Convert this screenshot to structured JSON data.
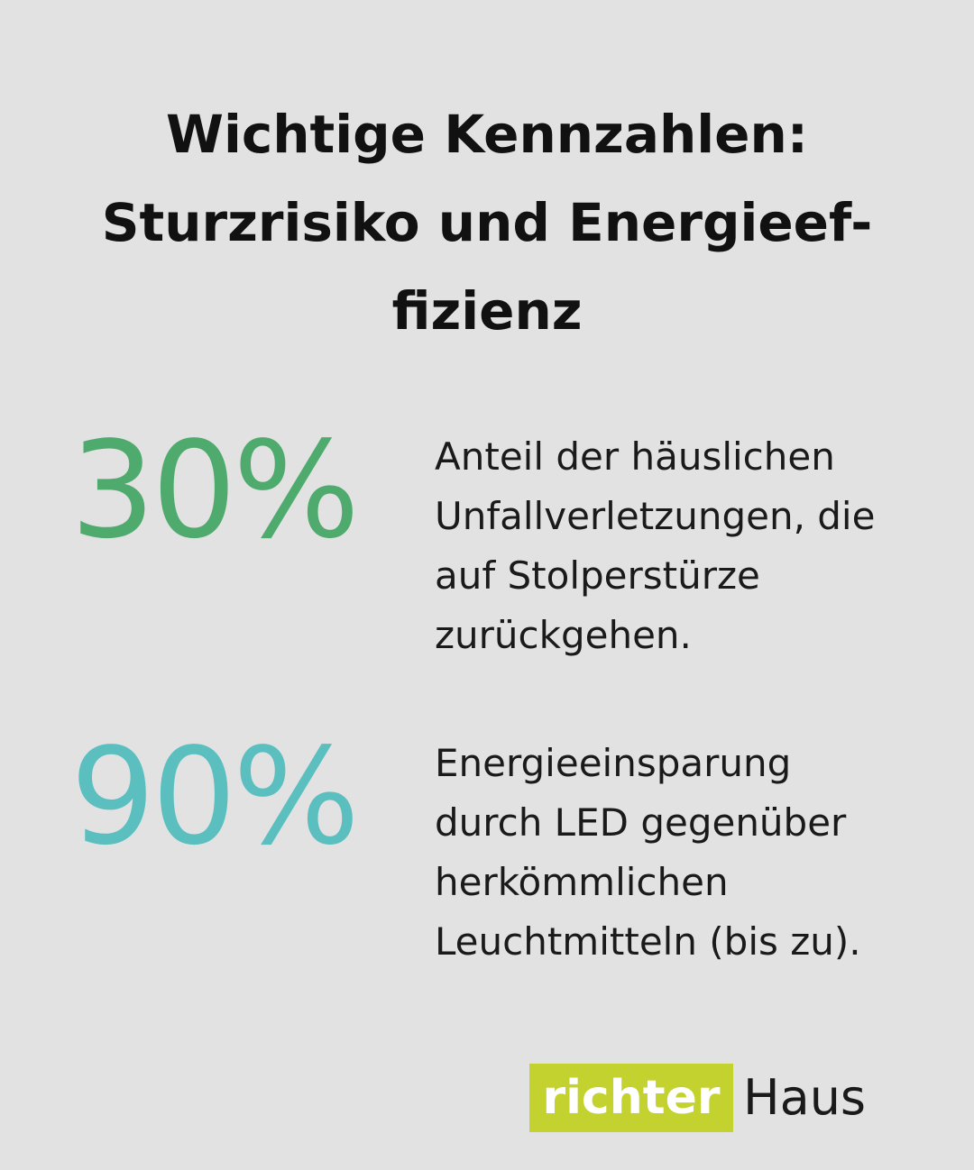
{
  "header": {
    "title_lines": [
      "Wichtige Kennzahlen:",
      "Sturzrisiko und Energieef-",
      "fizienz"
    ]
  },
  "stats": [
    {
      "figure": "30%",
      "description_lines": [
        "Anteil der häuslichen",
        "Unfallverletzungen, die",
        "auf Stolperstürze",
        "zurückgehen."
      ]
    },
    {
      "figure": "90%",
      "description_lines": [
        "Energieeinsparung",
        "durch LED gegenüber",
        "herkömmlichen",
        "Leuchtmitteln (bis zu)."
      ]
    }
  ],
  "logo": {
    "brand": "richter",
    "suffix": "Haus"
  }
}
